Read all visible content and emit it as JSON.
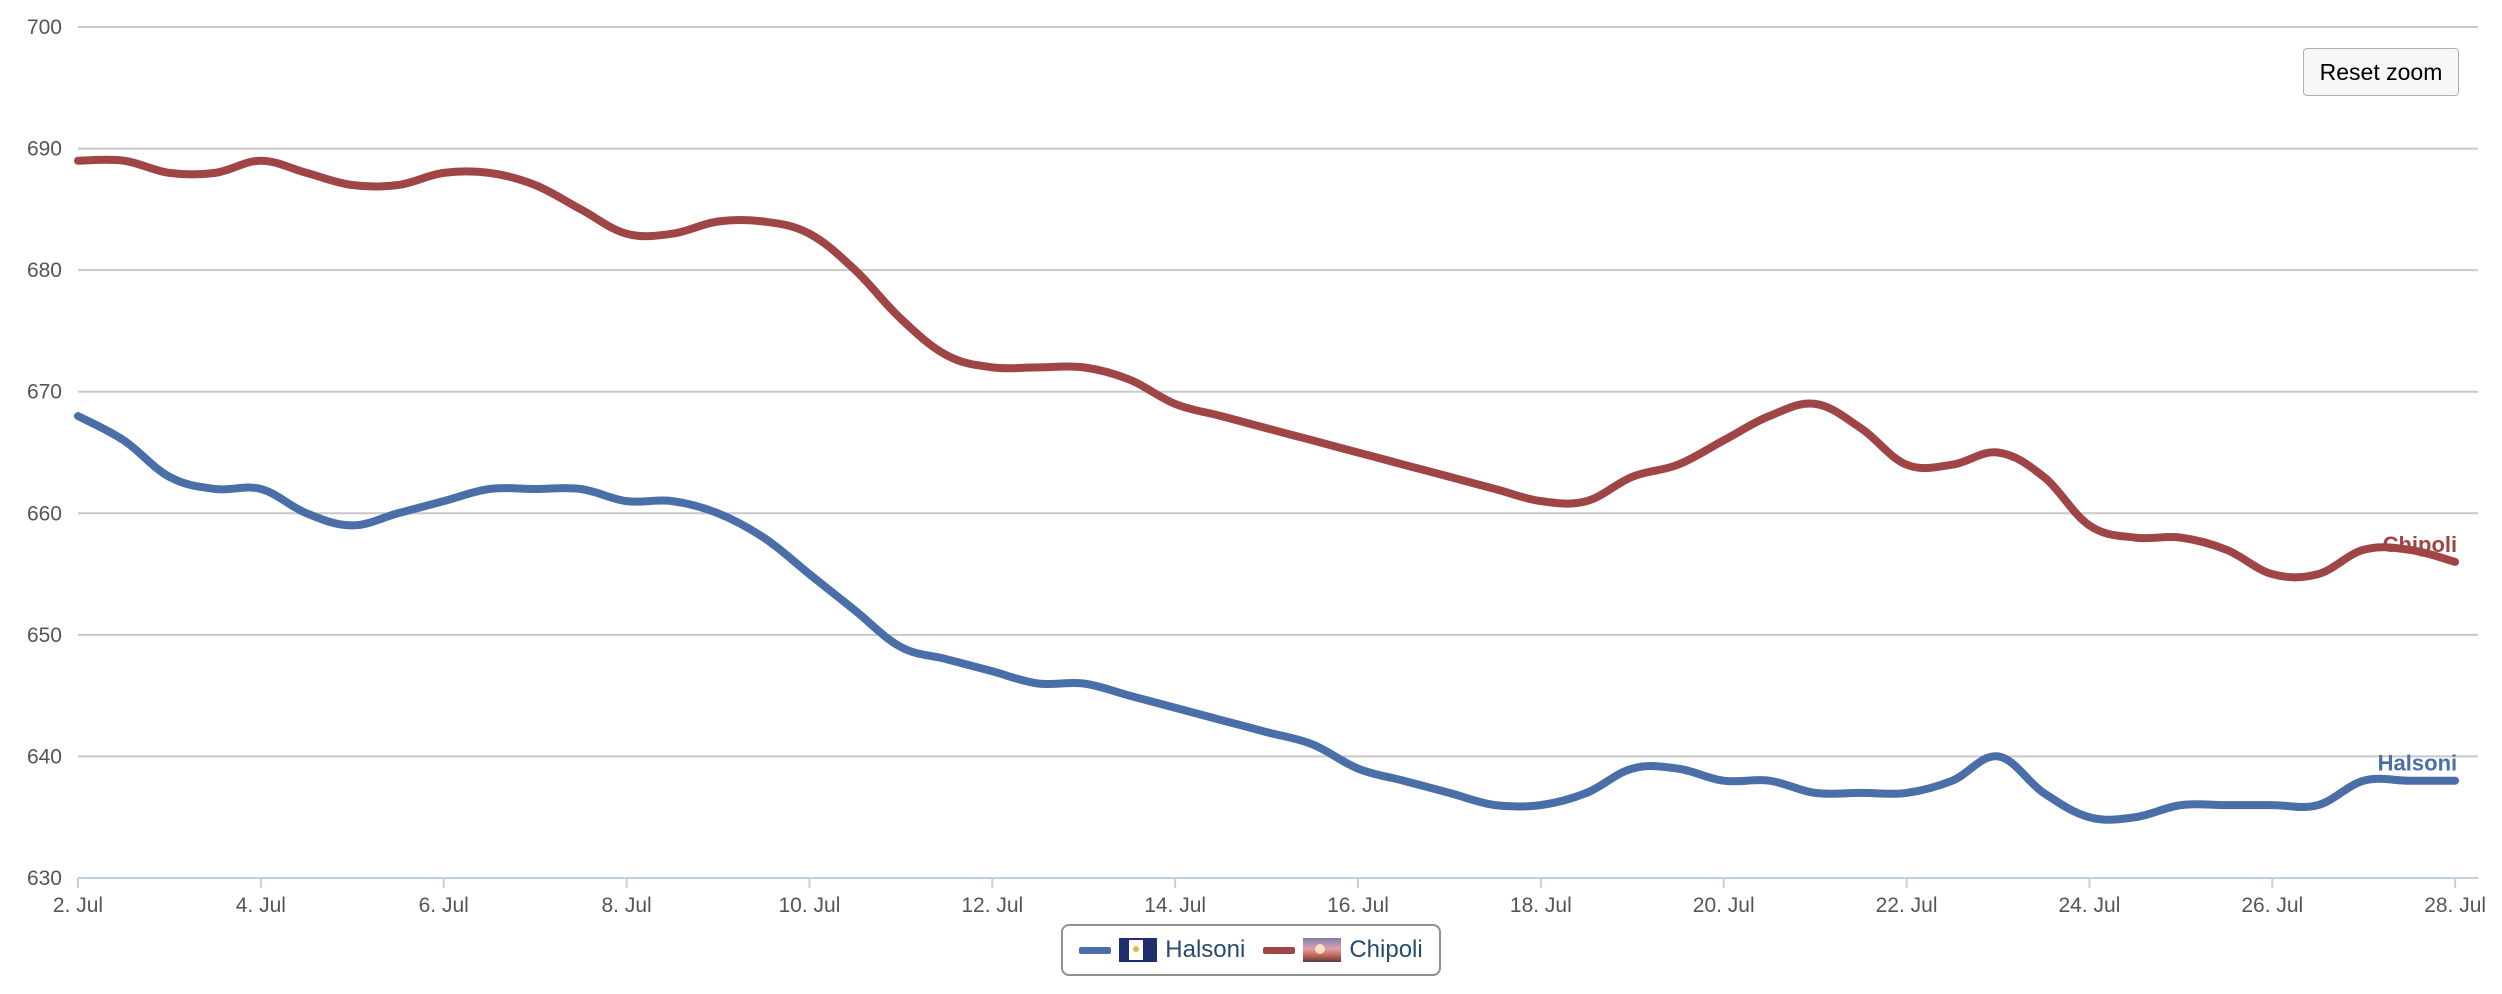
{
  "reset_zoom_label": "Reset zoom",
  "chart_data": {
    "type": "line",
    "title": "",
    "xlabel": "",
    "ylabel": "",
    "ylim": [
      630,
      700
    ],
    "y_ticks": [
      630,
      640,
      650,
      660,
      670,
      680,
      690,
      700
    ],
    "x_ticks": [
      {
        "day": 2,
        "label": "2. Jul"
      },
      {
        "day": 4,
        "label": "4. Jul"
      },
      {
        "day": 6,
        "label": "6. Jul"
      },
      {
        "day": 8,
        "label": "8. Jul"
      },
      {
        "day": 10,
        "label": "10. Jul"
      },
      {
        "day": 12,
        "label": "12. Jul"
      },
      {
        "day": 14,
        "label": "14. Jul"
      },
      {
        "day": 16,
        "label": "16. Jul"
      },
      {
        "day": 18,
        "label": "18. Jul"
      },
      {
        "day": 20,
        "label": "20. Jul"
      },
      {
        "day": 22,
        "label": "22. Jul"
      },
      {
        "day": 24,
        "label": "24. Jul"
      },
      {
        "day": 26,
        "label": "26. Jul"
      },
      {
        "day": 28,
        "label": "28. Jul"
      }
    ],
    "x_range": [
      2,
      28.25
    ],
    "grid": true,
    "legend_position": "bottom-center",
    "series": [
      {
        "name": "Halsoni",
        "color": "#4a6ea8",
        "x": [
          2,
          2.5,
          3,
          3.5,
          4,
          4.5,
          5,
          5.5,
          6,
          6.5,
          7,
          7.5,
          8,
          8.5,
          9,
          9.5,
          10,
          10.5,
          11,
          11.5,
          12,
          12.5,
          13,
          13.5,
          14,
          14.5,
          15,
          15.5,
          16,
          16.5,
          17,
          17.5,
          18,
          18.5,
          19,
          19.5,
          20,
          20.5,
          21,
          21.5,
          22,
          22.5,
          23,
          23.5,
          24,
          24.5,
          25,
          25.5,
          26,
          26.5,
          27,
          27.5,
          28
        ],
        "values": [
          668,
          666,
          663,
          662,
          662,
          660,
          659,
          660,
          661,
          662,
          662,
          662,
          661,
          661,
          660,
          658,
          655,
          652,
          649,
          648,
          647,
          646,
          646,
          645,
          644,
          643,
          642,
          641,
          639,
          638,
          637,
          636,
          636,
          637,
          639,
          639,
          638,
          638,
          637,
          637,
          637,
          638,
          640,
          637,
          635,
          635,
          636,
          636,
          636,
          636,
          638,
          638,
          638
        ],
        "end_label": "Halsoni"
      },
      {
        "name": "Chipoli",
        "color": "#a04545",
        "x": [
          2,
          2.5,
          3,
          3.5,
          4,
          4.5,
          5,
          5.5,
          6,
          6.5,
          7,
          7.5,
          8,
          8.5,
          9,
          9.5,
          10,
          10.5,
          11,
          11.5,
          12,
          12.5,
          13,
          13.5,
          14,
          14.5,
          15,
          15.5,
          16,
          16.5,
          17,
          17.5,
          18,
          18.5,
          19,
          19.5,
          20,
          20.5,
          21,
          21.5,
          22,
          22.5,
          23,
          23.5,
          24,
          24.5,
          25,
          25.5,
          26,
          26.5,
          27,
          27.5,
          28
        ],
        "values": [
          689,
          689,
          688,
          688,
          689,
          688,
          687,
          687,
          688,
          688,
          687,
          685,
          683,
          683,
          684,
          684,
          683,
          680,
          676,
          673,
          672,
          672,
          672,
          671,
          669,
          668,
          667,
          666,
          665,
          664,
          663,
          662,
          661,
          661,
          663,
          664,
          666,
          668,
          669,
          667,
          664,
          664,
          665,
          663,
          659,
          658,
          658,
          657,
          655,
          655,
          657,
          657,
          656
        ],
        "end_label": "Chipoli"
      }
    ]
  },
  "legend": {
    "items": [
      {
        "label": "Halsoni",
        "color": "#4a6ea8",
        "icon": "halsoni-flag-icon"
      },
      {
        "label": "Chipoli",
        "color": "#a04545",
        "icon": "chipoli-flag-icon"
      }
    ]
  }
}
